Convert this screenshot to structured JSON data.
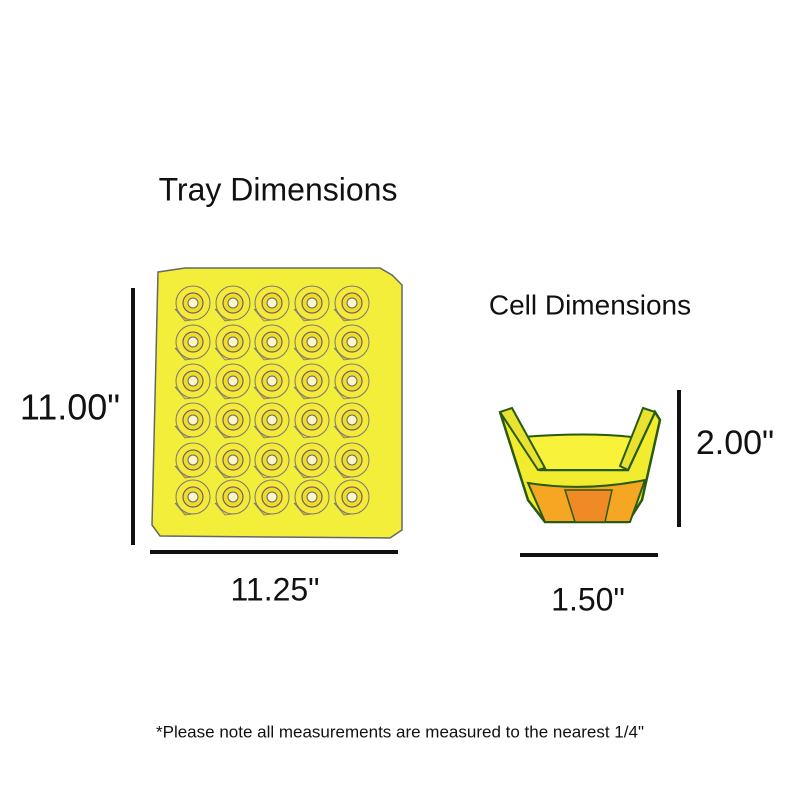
{
  "tray": {
    "title": "Tray Dimensions",
    "height": "11.00\"",
    "width": "11.25\""
  },
  "cell": {
    "title": "Cell Dimensions",
    "height": "2.00\"",
    "width": "1.50\""
  },
  "note": "*Please note all measurements are measured to the nearest 1/4\""
}
